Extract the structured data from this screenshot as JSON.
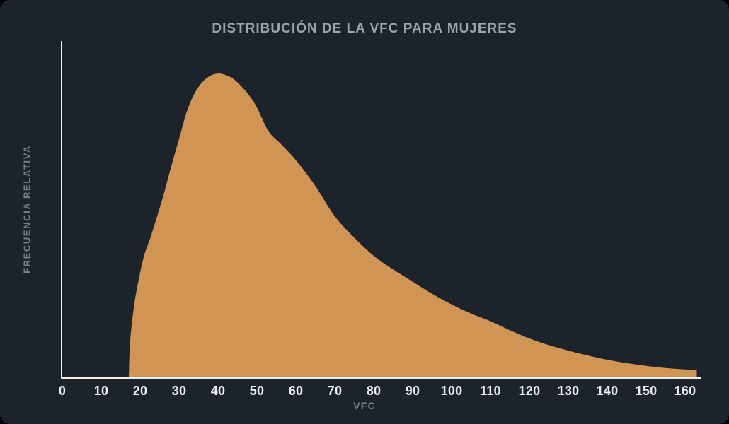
{
  "page": {
    "outside_background": "#000000",
    "card_background": "#1C232B"
  },
  "colors": {
    "area_fill": "#D09455",
    "axis_line": "#F2EFE7",
    "tick_text": "#EDEEF0",
    "title_text": "#9BA3AB",
    "axis_label_text": "#79828B"
  },
  "chart_data": {
    "type": "area",
    "title": "DISTRIBUCIÓN DE LA VFC PARA MUJERES",
    "xlabel": "VFC",
    "ylabel": "FRECUENCIA RELATIVA",
    "x_ticks": [
      0,
      10,
      20,
      30,
      40,
      50,
      60,
      70,
      80,
      90,
      100,
      110,
      120,
      130,
      140,
      150,
      160
    ],
    "xlim": [
      0,
      164
    ],
    "ylim": [
      0,
      1.107
    ],
    "y_axis_numeric_labels": false,
    "grid": false,
    "legend": false,
    "series": [
      {
        "name": "Distribución de la VFC para mujeres",
        "shape": "right-skewed unimodal, onset ~17, mode ~40, long right tail",
        "points": [
          [
            17.1,
            0.0
          ],
          [
            17.3,
            0.09
          ],
          [
            17.8,
            0.17
          ],
          [
            18.6,
            0.25
          ],
          [
            19.6,
            0.32
          ],
          [
            21.0,
            0.4
          ],
          [
            22.5,
            0.455
          ],
          [
            24.0,
            0.515
          ],
          [
            26.0,
            0.6
          ],
          [
            28.0,
            0.695
          ],
          [
            30.0,
            0.785
          ],
          [
            32.0,
            0.875
          ],
          [
            34.0,
            0.935
          ],
          [
            36.0,
            0.972
          ],
          [
            38.0,
            0.992
          ],
          [
            40.0,
            1.0
          ],
          [
            42.0,
            0.995
          ],
          [
            44.0,
            0.982
          ],
          [
            46.0,
            0.958
          ],
          [
            48.0,
            0.928
          ],
          [
            50.0,
            0.888
          ],
          [
            53.0,
            0.81
          ],
          [
            56.0,
            0.77
          ],
          [
            60.0,
            0.715
          ],
          [
            65.0,
            0.63
          ],
          [
            70.0,
            0.53
          ],
          [
            75.0,
            0.46
          ],
          [
            80.0,
            0.4
          ],
          [
            85.0,
            0.355
          ],
          [
            90.0,
            0.315
          ],
          [
            95.0,
            0.275
          ],
          [
            100.0,
            0.24
          ],
          [
            105.0,
            0.21
          ],
          [
            110.0,
            0.185
          ],
          [
            115.0,
            0.155
          ],
          [
            120.0,
            0.128
          ],
          [
            125.0,
            0.106
          ],
          [
            130.0,
            0.088
          ],
          [
            135.0,
            0.072
          ],
          [
            140.0,
            0.058
          ],
          [
            145.0,
            0.047
          ],
          [
            150.0,
            0.038
          ],
          [
            155.0,
            0.031
          ],
          [
            160.0,
            0.026
          ],
          [
            163.0,
            0.023
          ]
        ]
      }
    ]
  }
}
